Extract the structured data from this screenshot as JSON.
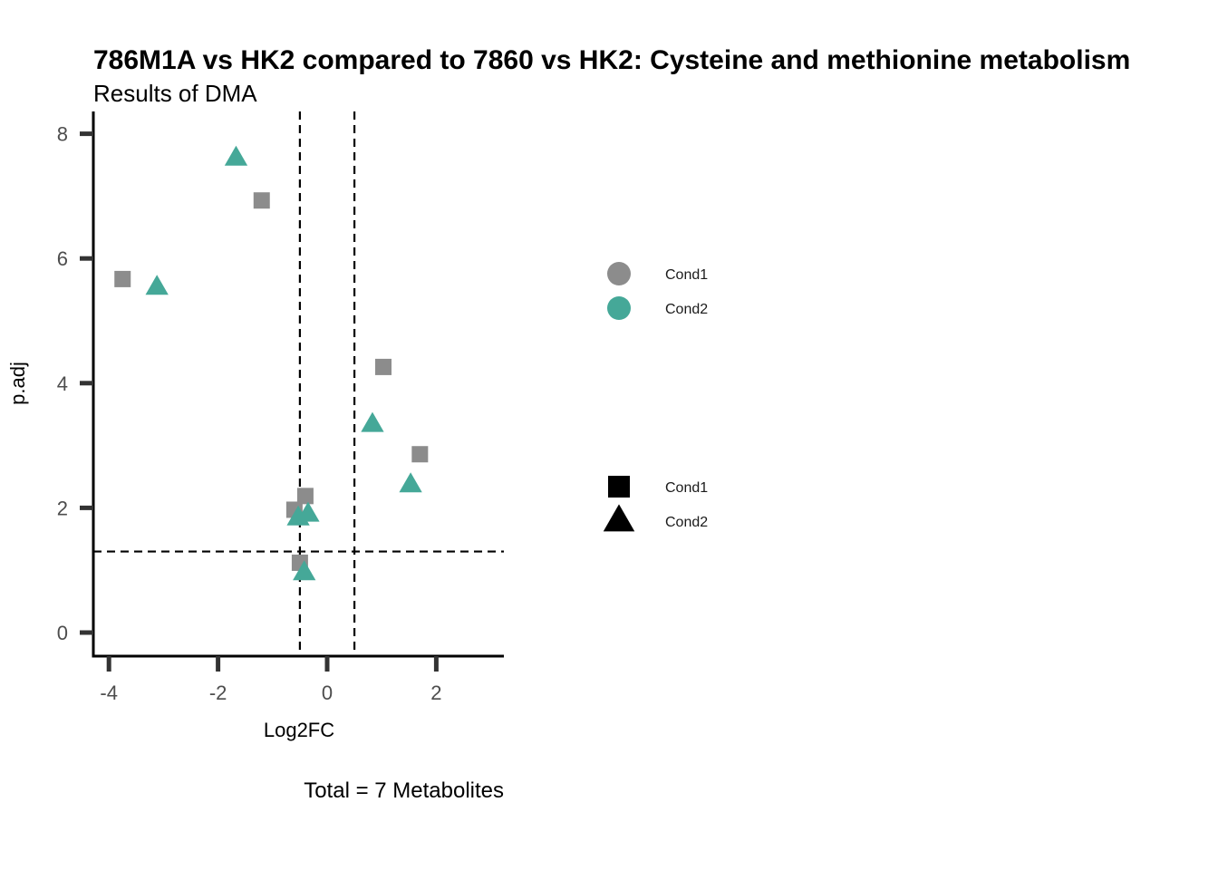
{
  "chart_data": {
    "type": "scatter",
    "title": "786M1A vs HK2 compared to 7860 vs HK2: Cysteine and methionine metabolism",
    "subtitle": "Results of DMA",
    "xlabel": "Log2FC",
    "ylabel": "p.adj",
    "caption": "Total = 7 Metabolites",
    "xlim": [
      -4.3,
      3.2
    ],
    "ylim": [
      -0.4,
      8.3
    ],
    "xticks": [
      -4,
      -2,
      0,
      2
    ],
    "yticks": [
      0,
      2,
      4,
      6,
      8
    ],
    "vlines": [
      -0.5,
      0.5
    ],
    "hline": 1.3,
    "grid": false,
    "series": [
      {
        "name": "Cond1",
        "shape": "square",
        "color": "#8c8c8c",
        "points": [
          {
            "x": -3.75,
            "y": 5.67
          },
          {
            "x": -1.2,
            "y": 6.93
          },
          {
            "x": 1.03,
            "y": 4.26
          },
          {
            "x": 1.7,
            "y": 2.86
          },
          {
            "x": -0.4,
            "y": 2.19
          },
          {
            "x": -0.6,
            "y": 1.97
          },
          {
            "x": -0.5,
            "y": 1.12
          }
        ]
      },
      {
        "name": "Cond2",
        "shape": "triangle",
        "color": "#45a898",
        "points": [
          {
            "x": -1.67,
            "y": 7.61
          },
          {
            "x": -3.12,
            "y": 5.54
          },
          {
            "x": 0.83,
            "y": 3.34
          },
          {
            "x": 1.53,
            "y": 2.37
          },
          {
            "x": -0.35,
            "y": 1.9
          },
          {
            "x": -0.53,
            "y": 1.84
          },
          {
            "x": -0.42,
            "y": 0.96
          }
        ]
      }
    ],
    "legend": {
      "placement": "right",
      "color_entries": [
        {
          "label": "Cond1",
          "color": "#8c8c8c"
        },
        {
          "label": "Cond2",
          "color": "#45a898"
        }
      ],
      "shape_entries": [
        {
          "label": "Cond1",
          "shape": "square"
        },
        {
          "label": "Cond2",
          "shape": "triangle"
        }
      ]
    }
  }
}
